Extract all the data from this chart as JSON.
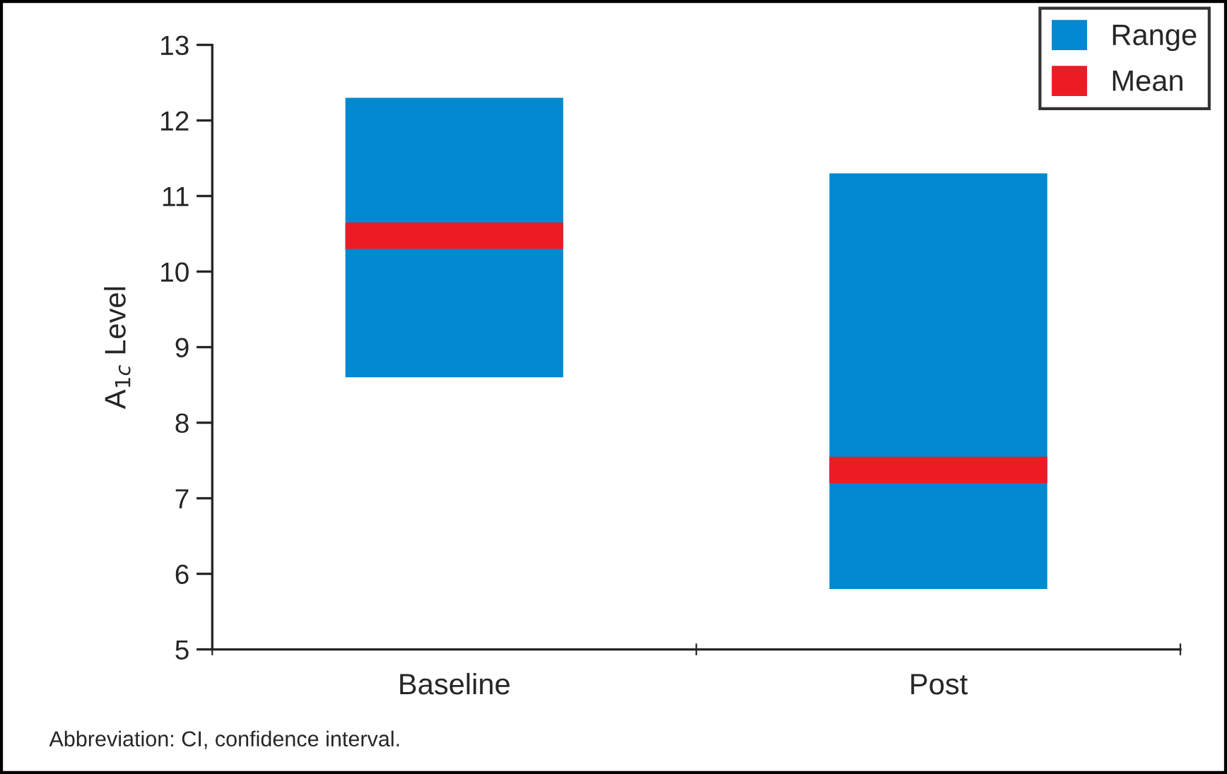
{
  "chart_data": {
    "type": "bar",
    "ylabel": "A$_{1c}$ Level",
    "categories": [
      "Baseline",
      "Post"
    ],
    "series": [
      {
        "name": "Range",
        "color": "#0088d1",
        "base": [
          8.6,
          5.8
        ],
        "values": [
          3.7,
          5.5
        ]
      },
      {
        "name": "Mean",
        "color": "#ed1c24",
        "base": [
          10.3,
          7.2
        ],
        "values": [
          0.35,
          0.35
        ]
      }
    ],
    "ylim": [
      5,
      13
    ],
    "yticks": [
      5,
      6,
      7,
      8,
      9,
      10,
      11,
      12,
      13
    ],
    "grid": false,
    "legend": "top right",
    "annotations": [
      "Abbreviation: CI, confidence interval."
    ]
  }
}
